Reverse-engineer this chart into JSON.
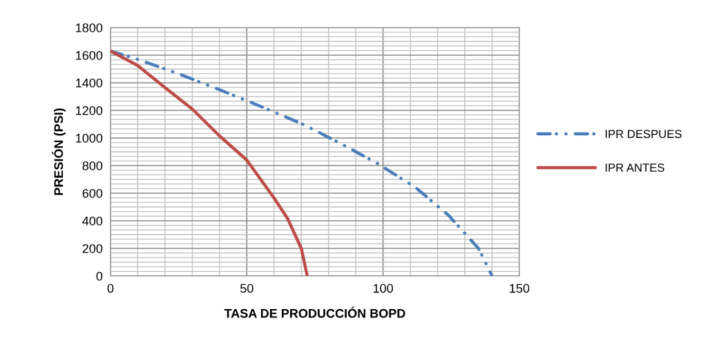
{
  "chart_data": {
    "type": "line",
    "xlabel": "TASA DE PRODUCCIÓN BOPD",
    "ylabel": "PRESIÓN (PSI)",
    "xlim": [
      0,
      150
    ],
    "xticks": [
      0,
      50,
      100,
      150
    ],
    "ylim": [
      0,
      1800
    ],
    "yticks": [
      0,
      200,
      400,
      600,
      800,
      1000,
      1200,
      1400,
      1600,
      1800
    ],
    "grid": true,
    "legend": "right",
    "series": [
      {
        "name": "IPR DESPUES",
        "color": "#4a7ebb",
        "line_style": "dashdot",
        "x": [
          0,
          10,
          25,
          40,
          55,
          70,
          84,
          98,
          112,
          124,
          135,
          140
        ],
        "values": [
          1630,
          1570,
          1465,
          1350,
          1230,
          1105,
          965,
          815,
          640,
          440,
          200,
          0
        ]
      },
      {
        "name": "IPR ANTES",
        "color": "#be4b48",
        "line_style": "solid",
        "x": [
          0,
          10,
          20,
          30,
          40,
          50,
          60,
          65,
          70,
          72.2
        ],
        "values": [
          1630,
          1525,
          1365,
          1210,
          1015,
          840,
          565,
          415,
          200,
          0
        ]
      }
    ]
  }
}
